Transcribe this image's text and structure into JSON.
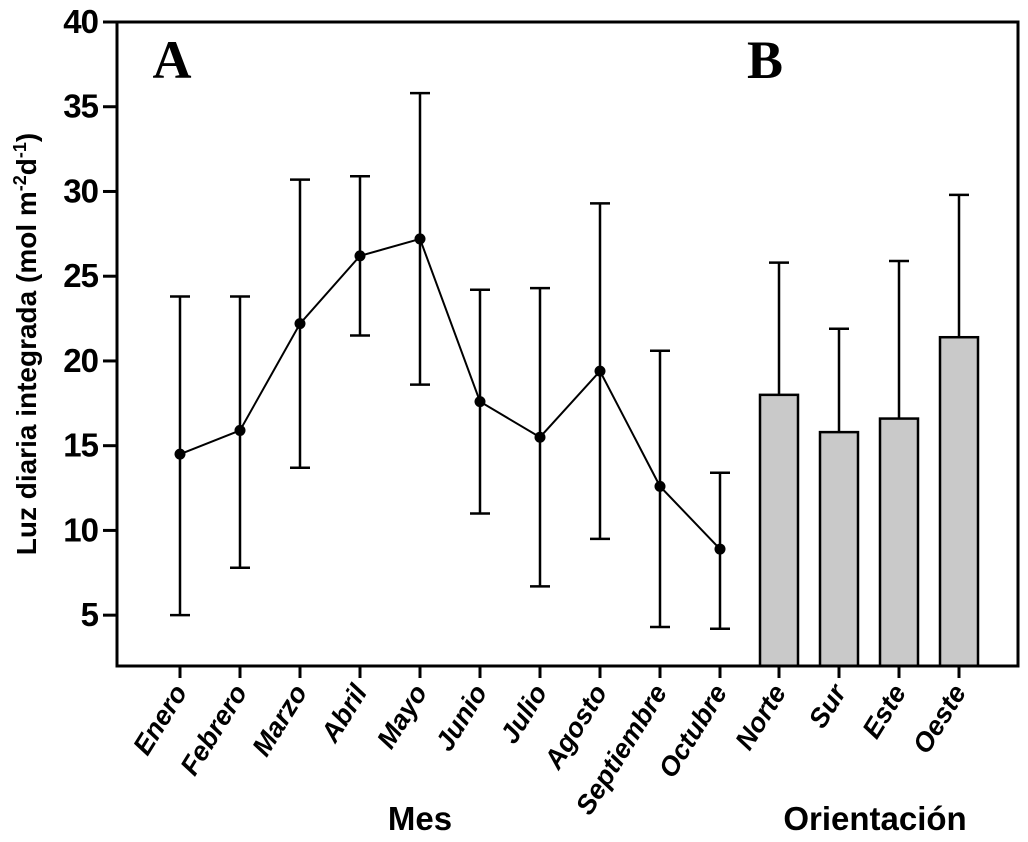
{
  "figure": {
    "panel_a_label": "A",
    "panel_b_label": "B",
    "x_axis_a_title": "Mes",
    "x_axis_b_title": "Orientación",
    "y_axis_label": {
      "pre": "Luz diaria integrada (mol m",
      "sup1": "-2",
      "mid": "d",
      "sup2": "-1",
      "post": ")"
    }
  },
  "colors": {
    "bar_fill": "#c9c9c9",
    "line": "#000000",
    "background": "#ffffff"
  },
  "chart_data": {
    "type": "line+bar",
    "title": "",
    "ylabel": "Luz diaria integrada (mol m⁻²d⁻¹)",
    "ylim": [
      2,
      40
    ],
    "yticks": [
      5,
      10,
      15,
      20,
      25,
      30,
      35,
      40
    ],
    "grid": false,
    "legend": false,
    "panels": [
      {
        "panel": "A",
        "type": "line",
        "xlabel": "Mes",
        "marker": "filled-circle",
        "error_bars": "both",
        "categories": [
          "Enero",
          "Febrero",
          "Marzo",
          "Abril",
          "Mayo",
          "Junio",
          "Julio",
          "Agosto",
          "Septiembre",
          "Octubre"
        ],
        "means": [
          14.5,
          15.9,
          22.2,
          26.2,
          27.2,
          17.6,
          15.5,
          19.4,
          12.6,
          8.9
        ],
        "err_low": [
          5.0,
          7.8,
          13.7,
          21.5,
          18.6,
          11.0,
          6.7,
          9.5,
          4.3,
          4.2
        ],
        "err_high": [
          23.8,
          23.8,
          30.7,
          30.9,
          35.8,
          24.2,
          24.3,
          29.3,
          20.6,
          13.4
        ]
      },
      {
        "panel": "B",
        "type": "bar",
        "xlabel": "Orientación",
        "error_bars": "upper",
        "categories": [
          "Norte",
          "Sur",
          "Este",
          "Oeste"
        ],
        "values": [
          18.0,
          15.8,
          16.6,
          21.4
        ],
        "err_high": [
          25.8,
          21.9,
          25.9,
          29.8
        ]
      }
    ]
  }
}
